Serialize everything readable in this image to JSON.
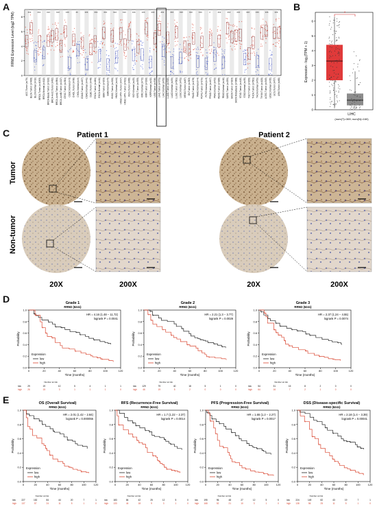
{
  "panels": {
    "a": "A",
    "b": "B",
    "c": "C",
    "d": "D",
    "e": "E"
  },
  "panel_a": {
    "ylabel": "RRM2 Expression Level (log2 TPM)",
    "yticks": [
      "0",
      "2",
      "4",
      "6",
      "8"
    ],
    "sig": [
      "***",
      "***",
      "***",
      "***",
      "***",
      "**",
      "***",
      "***",
      "***",
      "***",
      "***",
      "***",
      "***",
      "***",
      "***",
      "***",
      "***",
      "***",
      "***",
      "*",
      "***",
      "***",
      "***",
      "***",
      "***",
      "***",
      "***"
    ],
    "categories": [
      "ACC.Tumor (n=79)",
      "BLCA.Tumor (n=408)",
      "BLCA.Normal (n=19)",
      "BRCA.Tumor (n=1093)",
      "BRCA.Normal (n=112)",
      "BRCA-Basal.Tumor (n=190)",
      "BRCA-Her2.Tumor (n=82)",
      "BRCA-LumA.Tumor (n=564)",
      "BRCA-LumB.Tumor (n=217)",
      "CESC.Tumor (n=304)",
      "CESC.Normal (n=3)",
      "CHOL.Tumor (n=36)",
      "CHOL.Normal (n=9)",
      "COAD.Tumor (n=457)",
      "COAD.Normal (n=41)",
      "DLBC.Tumor (n=48)",
      "ESCA.Tumor (n=184)",
      "ESCA.Normal (n=11)",
      "GBM.Tumor (n=153)",
      "GBM.Normal (n=5)",
      "HNSC.Tumor (n=520)",
      "HNSC.Normal (n=44)",
      "HNSC-HPV+.Tumor (n=97)",
      "HNSC-HPV-.Tumor (n=421)",
      "KICH.Tumor (n=66)",
      "KICH.Normal (n=25)",
      "KIRC.Tumor (n=533)",
      "KIRC.Normal (n=72)",
      "KIRP.Tumor (n=290)",
      "KIRP.Normal (n=32)",
      "LGG.Tumor (n=516)",
      "LIHC.Tumor (n=371)",
      "LIHC.Normal (n=50)",
      "LUAD.Tumor (n=515)",
      "LUAD.Normal (n=59)",
      "LUSC.Tumor (n=501)",
      "LUSC.Normal (n=51)",
      "MESO.Tumor (n=87)",
      "OV.Tumor (n=303)",
      "PAAD.Tumor (n=178)",
      "PAAD.Normal (n=4)",
      "PCPG.Tumor (n=179)",
      "PCPG.Normal (n=3)",
      "PRAD.Tumor (n=497)",
      "PRAD.Normal (n=52)",
      "READ.Tumor (n=166)",
      "READ.Normal (n=10)",
      "SARC.Tumor (n=259)",
      "SKCM.Tumor (n=103)",
      "SKCM.Metastasis (n=368)",
      "STAD.Tumor (n=415)",
      "STAD.Normal (n=35)",
      "TGCT.Tumor (n=150)",
      "THCA.Tumor (n=501)",
      "THCA.Normal (n=59)",
      "THYM.Tumor (n=120)",
      "UCEC.Tumor (n=545)",
      "UCEC.Normal (n=35)",
      "UCS.Tumor (n=57)",
      "UVM.Tumor (n=80)"
    ]
  },
  "panel_b": {
    "ylabel": "Expression - log₂(TPM + 1)",
    "yticks": [
      "0",
      "1",
      "2",
      "3",
      "4",
      "5",
      "6"
    ],
    "sig": "*",
    "xlabel": "LIHC",
    "xsub": "(num(T)=369; num(N)=160)",
    "colors": {
      "tumor": "#e03a3a",
      "normal": "#8c8c8c"
    }
  },
  "panel_c": {
    "patient1": "Patient 1",
    "patient2": "Patient 2",
    "row_tumor": "Tumor",
    "row_nontumor": "Non-tumor",
    "mag_low": "20X",
    "mag_high": "200X"
  },
  "panel_d": [
    {
      "title": "Grade 1",
      "gene": "RRM2 (6241)",
      "hr": "HR = 4.16 (1.48 − 11.72)",
      "p": "logrank P = 0.0041",
      "xticks": [
        "0",
        "20",
        "40",
        "60",
        "80",
        "100",
        "120"
      ],
      "risk_low": [
        "29",
        "19",
        "10",
        "5",
        "4",
        "1",
        "1"
      ],
      "risk_high": [
        "26",
        "15",
        "3",
        "1",
        "1",
        "1",
        "0"
      ]
    },
    {
      "title": "Grade 2",
      "gene": "RRM2 (6241)",
      "hr": "HR = 2.21 (1.3 − 3.77)",
      "p": "logrank P = 0.0028",
      "xticks": [
        "0",
        "20",
        "40",
        "60",
        "80",
        "100",
        "120"
      ],
      "risk_low": [
        "129",
        "79",
        "40",
        "18",
        "5",
        "1",
        "0"
      ],
      "risk_high": [
        "46",
        "19",
        "5",
        "2",
        "0",
        "0",
        "0"
      ]
    },
    {
      "title": "Grade 3",
      "gene": "RRM2 (6241)",
      "hr": "HR = 2.37 (1.24 − 4.55)",
      "p": "logrank P = 0.0074",
      "xticks": [
        "0",
        "20",
        "40",
        "60",
        "80",
        "100",
        "120"
      ],
      "risk_low": [
        "54",
        "31",
        "15",
        "8",
        "2",
        "0",
        "0"
      ],
      "risk_high": [
        "64",
        "16",
        "7",
        "2",
        "1",
        "0",
        "0"
      ]
    }
  ],
  "panel_e": [
    {
      "title": "OS (Overall Survival)",
      "gene": "RRM2 (6241)",
      "hr": "HR = 2.01 (1.42 − 2.84)",
      "p": "logrank P = 0.000055",
      "xticks": [
        "0",
        "20",
        "40",
        "60",
        "80",
        "100",
        "120"
      ],
      "risk_low": [
        "227",
        "152",
        "84",
        "44",
        "20",
        "7",
        "1"
      ],
      "risk_high": [
        "137",
        "57",
        "24",
        "11",
        "5",
        "1",
        "0"
      ]
    },
    {
      "title": "RFS (Recurrence-Free Survival)",
      "gene": "RRM2 (6241)",
      "hr": "HR = 1.7 (1.22 − 2.37)",
      "p": "logrank P = 0.0014",
      "xticks": [
        "0",
        "20",
        "40",
        "60",
        "80",
        "100",
        "120"
      ],
      "risk_low": [
        "183",
        "84",
        "42",
        "25",
        "12",
        "5",
        "0"
      ],
      "risk_high": [
        "133",
        "44",
        "18",
        "9",
        "3",
        "1",
        "0"
      ]
    },
    {
      "title": "PFS (Progression-Free Survival)",
      "gene": "RRM2 (6241)",
      "hr": "HR = 1.65 (1.2 − 2.27)",
      "p": "logrank P = 0.0017",
      "xticks": [
        "0",
        "20",
        "40",
        "60",
        "80",
        "100",
        "120"
      ],
      "risk_low": [
        "195",
        "96",
        "48",
        "27",
        "12",
        "5",
        "0"
      ],
      "risk_high": [
        "168",
        "52",
        "21",
        "10",
        "3",
        "1",
        "0"
      ]
    },
    {
      "title": "DSS (Disease-specific Survival)",
      "gene": "RRM2 (6241)",
      "hr": "HR = 2.18 (1.4 − 3.39)",
      "p": "logrank P = 0.00041",
      "xticks": [
        "0",
        "20",
        "40",
        "60",
        "80",
        "100",
        "120"
      ],
      "risk_low": [
        "224",
        "149",
        "82",
        "43",
        "19",
        "7",
        "1"
      ],
      "risk_high": [
        "138",
        "56",
        "25",
        "11",
        "5",
        "1",
        "0"
      ]
    }
  ],
  "km_common": {
    "ylabel": "Probability",
    "xlabel": "Time (months)",
    "legend_title": "Expression",
    "legend_low": "low",
    "legend_high": "high",
    "risk_title": "Number at risk",
    "risk_low_label": "low",
    "risk_high_label": "high",
    "yticks": [
      "0.0",
      "0.2",
      "0.4",
      "0.6",
      "0.8",
      "1.0"
    ],
    "colors": {
      "low": "#222222",
      "high": "#d9442e"
    }
  }
}
